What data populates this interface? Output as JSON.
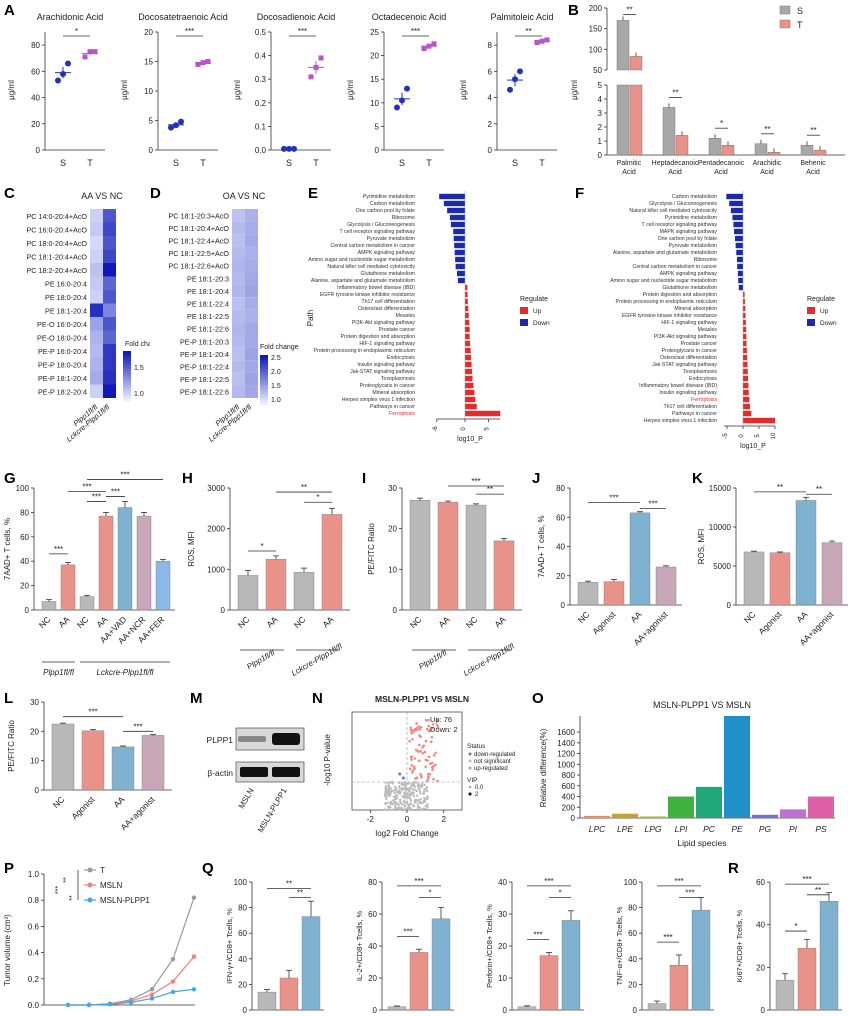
{
  "colors": {
    "S": "#a8a8a8",
    "T": "#e8928a",
    "NC": "#b8b8b8",
    "red": "#e8928a",
    "blue": "#7fb2d0",
    "mauve": "#c8a8b8",
    "navy": "#1a2aa8",
    "upred": "#e82a2a",
    "purple": "#b455c8",
    "dotblue": "#2233bb"
  },
  "panel_labels": [
    "A",
    "B",
    "C",
    "D",
    "E",
    "F",
    "G",
    "H",
    "I",
    "J",
    "K",
    "L",
    "M",
    "N",
    "O",
    "P",
    "Q",
    "R"
  ],
  "A": {
    "ylabel": "μg/ml",
    "xcats": [
      "S",
      "T"
    ],
    "charts": [
      {
        "title": "Arachidonic Acid",
        "yticks": [
          "0",
          "20",
          "40",
          "60",
          "80"
        ],
        "ymax": 90,
        "S": [
          53,
          58,
          66
        ],
        "T": [
          71,
          75,
          75
        ],
        "sig": "*"
      },
      {
        "title": "Docosatetraenoic Acid",
        "yticks": [
          "0",
          "5",
          "10",
          "15",
          "20"
        ],
        "ymax": 20,
        "S": [
          3.8,
          4.2,
          4.8
        ],
        "T": [
          14.5,
          14.8,
          15.0
        ],
        "sig": "***"
      },
      {
        "title": "Docosadienoic Acid",
        "yticks": [
          "0.0",
          "0.1",
          "0.2",
          "0.3",
          "0.4",
          "0.5"
        ],
        "ymax": 0.5,
        "S": [
          0.005,
          0.005,
          0.005
        ],
        "T": [
          0.31,
          0.35,
          0.39
        ],
        "sig": "***"
      },
      {
        "title": "Octadecenoic Acid",
        "yticks": [
          "0",
          "5",
          "10",
          "15",
          "20",
          "25"
        ],
        "ymax": 25,
        "S": [
          9,
          10.5,
          13
        ],
        "T": [
          21.5,
          22,
          22.5
        ],
        "sig": "***"
      },
      {
        "title": "Palmitoleic Acid",
        "yticks": [
          "0",
          "2",
          "4",
          "6",
          "8"
        ],
        "ymax": 9,
        "S": [
          4.6,
          5.4,
          6.0
        ],
        "T": [
          8.2,
          8.3,
          8.4
        ],
        "sig": "**"
      }
    ]
  },
  "B": {
    "ylabel": "μg/ml",
    "legend": [
      "S",
      "T"
    ],
    "categories": [
      "Palmitic Acid",
      "Heptadecanoic Acid",
      "Pentadecanoic Acid",
      "Arachidic Acid",
      "Behenic Acid"
    ],
    "S": [
      170,
      3.4,
      1.2,
      0.8,
      0.7
    ],
    "T": [
      83,
      1.4,
      0.7,
      0.2,
      0.35
    ],
    "sig": [
      "**",
      "**",
      "*",
      "**",
      "**"
    ],
    "yticks_top": [
      "50",
      "100",
      "150",
      "200"
    ],
    "yticks_bottom": [
      "0",
      "1",
      "2",
      "3",
      "4",
      "5"
    ]
  },
  "C": {
    "title": "AA VS NC",
    "rows": [
      "PC 14:0-20:4+AcO",
      "PC 16:0-20:4+AcO",
      "PC 18:0-20:4+AcO",
      "PC 18:1-20:4+AcO",
      "PC 18:2-20:4+AcO",
      "PE 16:0-20:4",
      "PE 18:0-20:4",
      "PE 18:1-20:4",
      "PE-O 16:0-20:4",
      "PE-O 18:0-20:4",
      "PE-P 16:0-20:4",
      "PE-P 18:0-20:4",
      "PE-P 18:1-20:4",
      "PE-P 18:2-20:4"
    ],
    "col1": [
      0.5,
      0.55,
      0.45,
      0.5,
      0.6,
      0.55,
      0.5,
      1.55,
      0.8,
      0.7,
      0.65,
      0.7,
      0.75,
      0.5
    ],
    "col2": [
      1.3,
      1.4,
      1.3,
      1.4,
      1.7,
      1.2,
      1.3,
      1.0,
      1.3,
      1.2,
      1.5,
      1.5,
      1.55,
      1.7
    ],
    "legend_title": "Fold change",
    "legend_ticks": [
      "1.5",
      "1.0"
    ],
    "cols": [
      "Plpp1fl/fl",
      "Lckcre-Plpp1fl/fl"
    ]
  },
  "D": {
    "title": "OA VS NC",
    "rows": [
      "PC 18:1-20:3+AcO",
      "PC 18:1-20:4+AcO",
      "PC 18:1-22:4+AcO",
      "PC 18:1-22:5+AcO",
      "PC 18:1-22:6+AcO",
      "PE 18:1-20:3",
      "PE 18:1-20:4",
      "PE 18:1-22:4",
      "PE 18:1-22:5",
      "PE 18:1-22:6",
      "PE-P 18:1-20:3",
      "PE-P 18:1-20:4",
      "PE-P 18:1-22:4",
      "PE-P 18:1-22:5",
      "PE-P 18:1-22:6"
    ],
    "col1": [
      0.8,
      0.9,
      0.85,
      0.9,
      0.95,
      0.9,
      0.95,
      0.85,
      0.9,
      0.95,
      0.9,
      0.85,
      0.9,
      0.85,
      0.9
    ],
    "col2": [
      1.0,
      1.05,
      1.1,
      1.0,
      1.05,
      1.1,
      1.15,
      1.05,
      1.0,
      1.1,
      1.1,
      1.15,
      1.1,
      1.15,
      1.1
    ],
    "legend_title": "Fold change",
    "legend_ticks": [
      "2.5",
      "2.0",
      "1.5",
      "1.0"
    ],
    "cols": [
      "Plpp1fl/fl",
      "Lckcre-Plpp1fl/fl"
    ]
  },
  "E": {
    "ylabel": "Path",
    "xlabel": "log10_P",
    "xticks": [
      "-6",
      "0",
      "5"
    ],
    "legend_title": "Regulate",
    "legend": [
      "Up",
      "Down"
    ],
    "highlight": "Ferroptosis",
    "paths": [
      "Pyrimidine metabolism",
      "Carbon metabolism",
      "One carbon pool by folate",
      "Ribosome",
      "Glycolysis / Gluconeogenesis",
      "T cell receptor signaling pathway",
      "Pyruvate metabolism",
      "Central carbon metabolism in cancer",
      "AMPK signaling pathway",
      "Amino sugar and nucleotide sugar metabolism",
      "Natural killer cell mediated cytotoxicity",
      "Glutathione metabolism",
      "Alanine, aspartate and glutamate metabolism",
      "Inflammatory bowel disease (IBD)",
      "EGFR tyrosine kinase inhibitor resistance",
      "Th17 cell differentiation",
      "Osteoclast differentiation",
      "Measles",
      "PI3K-Akt signaling pathway",
      "Prostate cancer",
      "Protein digestion and absorption",
      "HIF-1 signaling pathway",
      "Protein processing in endoplasmic reticulum",
      "Endocytosis",
      "Insulin signaling pathway",
      "Jak-STAT signaling pathway",
      "Toxoplasmosis",
      "Proteoglycans in cancer",
      "Mineral absorption",
      "Herpes simplex virus 1 infection",
      "Pathways in cancer",
      "Ferroptosis"
    ],
    "values": [
      -5.5,
      -4.5,
      -3.8,
      -3.2,
      -3.0,
      -2.5,
      -2.4,
      -2.3,
      -2.2,
      -2.1,
      -2.0,
      -1.7,
      -1.5,
      0.5,
      0.55,
      0.6,
      0.7,
      0.8,
      0.9,
      1.0,
      1.0,
      1.1,
      1.2,
      1.3,
      1.4,
      1.5,
      1.6,
      1.8,
      2.0,
      2.2,
      2.5,
      7.5
    ]
  },
  "F": {
    "xlabel": "log10_P",
    "xticks": [
      "-5",
      "0",
      "5",
      "10"
    ],
    "legend_title": "Regulate",
    "legend": [
      "Up",
      "Down"
    ],
    "highlight": "Ferroptosis",
    "paths": [
      "Carbon metabolism",
      "Glycolysis / Gluconeogenesis",
      "Natural killer cell mediated cytotoxicity",
      "Pyrimidine metabolism",
      "T cell receptor signaling pathway",
      "MAPK signaling pathway",
      "One carbon pool by folate",
      "Pyruvate metabolism",
      "Alanine, aspartate and glutamate metabolism",
      "Ribosome",
      "Central carbon metabolism in cancer",
      "AMPK signaling pathway",
      "Amino sugar and nucleotide sugar metabolism",
      "Glutathione metabolism",
      "Protein digestion and absorption",
      "Protein processing in endoplasmic reticulum",
      "Mineral absorption",
      "EGFR tyrosine kinase inhibitor resistance",
      "HIF-1 signaling pathway",
      "Measles",
      "PI3K-Akt signaling pathway",
      "Prostate cancer",
      "Proteoglycans in cancer",
      "Osteoclast differentiation",
      "Jak-STAT signaling pathway",
      "Toxoplasmosis",
      "Endocytosis",
      "Inflammatory bowel disease (IBD)",
      "Insulin signaling pathway",
      "Ferroptosis",
      "Th17 cell differentiation",
      "Pathways in cancer",
      "Herpes simplex virus 1 infection"
    ],
    "values": [
      -5.2,
      -4.3,
      -3.8,
      -3.3,
      -3.0,
      -2.8,
      -2.5,
      -2.3,
      -2.1,
      -1.9,
      -1.8,
      -1.6,
      -1.5,
      -1.3,
      0.5,
      0.6,
      0.7,
      0.8,
      0.9,
      1.0,
      1.05,
      1.1,
      1.2,
      1.3,
      1.4,
      1.5,
      1.6,
      1.7,
      1.8,
      2.0,
      2.2,
      2.6,
      10.0
    ]
  },
  "G": {
    "ylabel": "7AAD+ T cells, %",
    "yticks": [
      "0",
      "20",
      "40",
      "60",
      "80",
      "100"
    ],
    "ymax": 100,
    "categories": [
      "NC",
      "AA",
      "NC",
      "AA",
      "AA+VAD",
      "AA+NCR",
      "AA+FER"
    ],
    "values": [
      7,
      37,
      11,
      77,
      84,
      77,
      40
    ],
    "errs": [
      1.5,
      2,
      1,
      3,
      5,
      3,
      1.5
    ],
    "colors": [
      "grey",
      "red",
      "grey",
      "red",
      "blue",
      "mauve",
      "lightblue"
    ],
    "groups": [
      "Plpp1fl/fl",
      "Lckcre-Plpp1fl/fl"
    ],
    "sig": [
      "***",
      "***",
      "***",
      "***",
      "***"
    ]
  },
  "H": {
    "ylabel": "ROS, MFI",
    "yticks": [
      "0",
      "1000",
      "2000",
      "3000"
    ],
    "ymax": 3000,
    "categories": [
      "NC",
      "AA",
      "NC",
      "AA"
    ],
    "values": [
      850,
      1250,
      930,
      2350
    ],
    "errs": [
      120,
      80,
      100,
      150
    ],
    "groups": [
      "Plpp1fl/fl",
      "Lckcre-Plpp1fl/fl"
    ],
    "sig": [
      "*",
      "**",
      "*"
    ]
  },
  "I": {
    "ylabel": "PE/FITC Ratio",
    "yticks": [
      "0",
      "10",
      "20",
      "30"
    ],
    "ymax": 30,
    "categories": [
      "NC",
      "AA",
      "NC",
      "AA"
    ],
    "values": [
      27,
      26.5,
      25.8,
      17
    ],
    "errs": [
      0.5,
      0.3,
      0.3,
      0.6
    ],
    "groups": [
      "Plpp1fl/fl",
      "Lckcre-Plpp1fl/fl"
    ],
    "sig": [
      "***",
      "**"
    ]
  },
  "J": {
    "ylabel": "7AAD+ T cells, %",
    "yticks": [
      "0",
      "20",
      "40",
      "60",
      "80"
    ],
    "ymax": 80,
    "categories": [
      "NC",
      "Agonist",
      "AA",
      "AA+agonist"
    ],
    "values": [
      15.5,
      16,
      63,
      26
    ],
    "errs": [
      0.8,
      1.5,
      0.8,
      0.8
    ],
    "sig": [
      "***",
      "***"
    ]
  },
  "K": {
    "ylabel": "ROS, MFI",
    "yticks": [
      "0",
      "5000",
      "10000",
      "15000"
    ],
    "ymax": 15000,
    "categories": [
      "NC",
      "Agonist",
      "AA",
      "AA+agonist"
    ],
    "values": [
      6800,
      6700,
      13400,
      8000
    ],
    "errs": [
      100,
      100,
      400,
      200
    ],
    "sig": [
      "**",
      "**"
    ]
  },
  "L": {
    "ylabel": "PE/FITC Ratio",
    "yticks": [
      "0",
      "10",
      "20",
      "30"
    ],
    "ymax": 30,
    "categories": [
      "NC",
      "Agonist",
      "AA",
      "AA+agonist"
    ],
    "values": [
      22.5,
      20.2,
      14.7,
      18.6
    ],
    "errs": [
      0.3,
      0.4,
      0.3,
      0.3
    ],
    "sig": [
      "***",
      "***"
    ]
  },
  "M": {
    "bands": [
      "PLPP1",
      "β-actin"
    ],
    "lanes": [
      "MSLN",
      "MSLN-PLPP1"
    ]
  },
  "N": {
    "title": "MSLN-PLPP1 VS MSLN",
    "xlabel": "log2 Fold Change",
    "ylabel": "-log10 P-value",
    "xticks": [
      "-2",
      "0",
      "2"
    ],
    "counts": "Up: 76\nDown: 2",
    "up": "Up: 76",
    "down": "Down: 2",
    "legend_title": "Status",
    "legend": [
      "down-regulated",
      "not significant",
      "up-regulated"
    ],
    "vip_title": "VIP",
    "vip": [
      "0.0",
      "2"
    ]
  },
  "O": {
    "title": "MSLN-PLPP1 VS MSLN",
    "ylabel": "Relative difference(%)",
    "xlabel": "Lipid species",
    "yticks": [
      "0",
      "200",
      "400",
      "600",
      "800",
      "1000",
      "1200",
      "1400",
      "1600"
    ],
    "ymax": 1900,
    "categories": [
      "LPC",
      "LPE",
      "LPG",
      "LPI",
      "PC",
      "PE",
      "PG",
      "PI",
      "PS"
    ],
    "values": [
      40,
      80,
      30,
      400,
      580,
      1900,
      60,
      160,
      400
    ],
    "colors": [
      "#f08a60",
      "#c8a030",
      "#a8c040",
      "#40b040",
      "#20a878",
      "#2090c8",
      "#7070d8",
      "#c070d0",
      "#e060a8"
    ]
  },
  "P": {
    "ylabel": "Tumor volume (cm³)",
    "yticks": [
      "0.0",
      "0.2",
      "0.4",
      "0.6",
      "0.8",
      "1.0"
    ],
    "ymax": 1.0,
    "legend": [
      "T",
      "MSLN",
      "MSLN-PLPP1"
    ],
    "series": {
      "T": [
        0,
        0,
        0.01,
        0.04,
        0.12,
        0.35,
        0.82
      ],
      "MSLN": [
        0,
        0,
        0.01,
        0.03,
        0.08,
        0.18,
        0.37
      ],
      "PLPP1": [
        0,
        0,
        0.005,
        0.02,
        0.05,
        0.1,
        0.12
      ]
    },
    "sig": [
      "***",
      "**",
      "**"
    ]
  },
  "Q": {
    "charts": [
      {
        "ylabel": "IFN-γ+/CD8+ Tcells, %",
        "yticks": [
          "0",
          "20",
          "40",
          "60",
          "80",
          "100"
        ],
        "ymax": 100,
        "values": [
          14,
          25,
          73
        ],
        "errs": [
          2,
          6,
          12
        ],
        "sig": [
          "**",
          "**"
        ]
      },
      {
        "ylabel": "IL-2+/CD8+ Tcells, %",
        "yticks": [
          "0",
          "20",
          "40",
          "60",
          "80"
        ],
        "ymax": 80,
        "values": [
          2,
          36,
          57
        ],
        "errs": [
          0.5,
          2,
          7
        ],
        "sig": [
          "***",
          "***",
          "*"
        ]
      },
      {
        "ylabel": "Perforin+/CD8+ Tcells, %",
        "yticks": [
          "0",
          "10",
          "20",
          "30",
          "40"
        ],
        "ymax": 40,
        "values": [
          1,
          17,
          28
        ],
        "errs": [
          0.3,
          1,
          3
        ],
        "sig": [
          "***",
          "***",
          "*"
        ]
      },
      {
        "ylabel": "TNF-α+/CD8+ Tcells, %",
        "yticks": [
          "0",
          "20",
          "40",
          "60",
          "80",
          "100"
        ],
        "ymax": 100,
        "values": [
          5,
          35,
          78
        ],
        "errs": [
          2,
          8,
          10
        ],
        "sig": [
          "***",
          "***",
          "***"
        ]
      }
    ]
  },
  "R": {
    "ylabel": "Ki67+/CD8+ Tcells, %",
    "yticks": [
      "0",
      "20",
      "40",
      "60"
    ],
    "ymax": 60,
    "values": [
      14,
      29,
      51
    ],
    "errs": [
      3,
      4,
      4
    ],
    "sig": [
      "***",
      "*",
      "**"
    ]
  }
}
